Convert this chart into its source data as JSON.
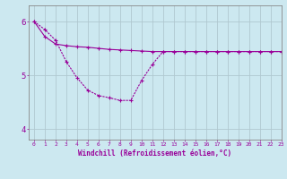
{
  "line1_x": [
    0,
    1,
    2,
    3,
    4,
    5,
    6,
    7,
    8,
    9,
    10,
    11,
    12,
    13,
    14,
    15,
    16,
    17,
    18,
    19,
    20,
    21,
    22,
    23
  ],
  "line1_y": [
    6.0,
    5.72,
    5.58,
    5.55,
    5.53,
    5.52,
    5.5,
    5.48,
    5.47,
    5.46,
    5.45,
    5.44,
    5.44,
    5.44,
    5.44,
    5.44,
    5.44,
    5.44,
    5.44,
    5.44,
    5.44,
    5.44,
    5.44,
    5.44
  ],
  "line2_x": [
    0,
    1,
    2,
    3,
    4,
    5,
    6,
    7,
    8,
    9,
    10,
    11,
    12,
    13,
    14,
    15,
    16,
    17,
    18,
    19,
    20,
    21,
    22,
    23
  ],
  "line2_y": [
    6.0,
    5.85,
    5.65,
    5.25,
    4.95,
    4.72,
    4.62,
    4.58,
    4.53,
    4.53,
    4.9,
    5.2,
    5.44,
    5.44,
    5.44,
    5.44,
    5.44,
    5.44,
    5.44,
    5.44,
    5.44,
    5.44,
    5.44,
    5.44
  ],
  "line_color": "#990099",
  "bg_color": "#cce8f0",
  "grid_color": "#b0c8d0",
  "xlabel": "Windchill (Refroidissement éolien,°C)",
  "ylim": [
    3.8,
    6.3
  ],
  "xlim": [
    -0.5,
    23
  ],
  "yticks": [
    4,
    5,
    6
  ],
  "xticks": [
    0,
    1,
    2,
    3,
    4,
    5,
    6,
    7,
    8,
    9,
    10,
    11,
    12,
    13,
    14,
    15,
    16,
    17,
    18,
    19,
    20,
    21,
    22,
    23
  ]
}
